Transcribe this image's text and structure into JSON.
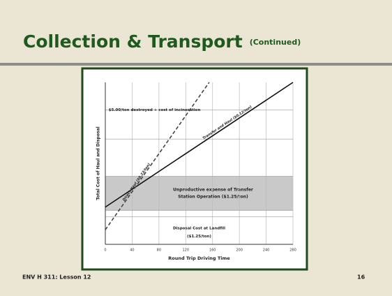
{
  "slide": {
    "title": "Collection & Transport",
    "subtitle": "(Continued)",
    "footer": "ENV H 311: Lesson 12",
    "page": "16"
  },
  "chart_data": {
    "type": "line",
    "xlabel": "Round Trip Driving Time",
    "ylabel": "Total Cost of Haul and Disposal",
    "xlim": [
      0,
      280
    ],
    "xticks": [
      0,
      40,
      80,
      120,
      160,
      200,
      240,
      280
    ],
    "ylim": [
      0,
      100
    ],
    "grid": true,
    "series": [
      {
        "name": "Transfer and Haul ($0.12/ton)",
        "color": "#111111",
        "dash": false,
        "x": [
          0,
          280
        ],
        "values": [
          23,
          100
        ]
      },
      {
        "name": "Direct Haul ($0.23/ton)",
        "color": "#444444",
        "dash": true,
        "x": [
          0,
          155
        ],
        "values": [
          9,
          100
        ]
      }
    ],
    "annotations": [
      {
        "text": "$5.00/ton destroyed + cost of incineration",
        "x": 5,
        "y": 83
      },
      {
        "text": "Disposal Cost at Landfill",
        "x": 140,
        "y": 10
      },
      {
        "text": "($1.25/ton)",
        "x": 140,
        "y": 5
      }
    ],
    "band": {
      "ylim": [
        21,
        42
      ],
      "color": "#c9c9c9",
      "lines": [
        "Unproductive expense of Transfer",
        "Station Operation ($1.25/ton)"
      ]
    },
    "hlines": [
      83,
      65,
      42,
      21,
      17
    ]
  }
}
